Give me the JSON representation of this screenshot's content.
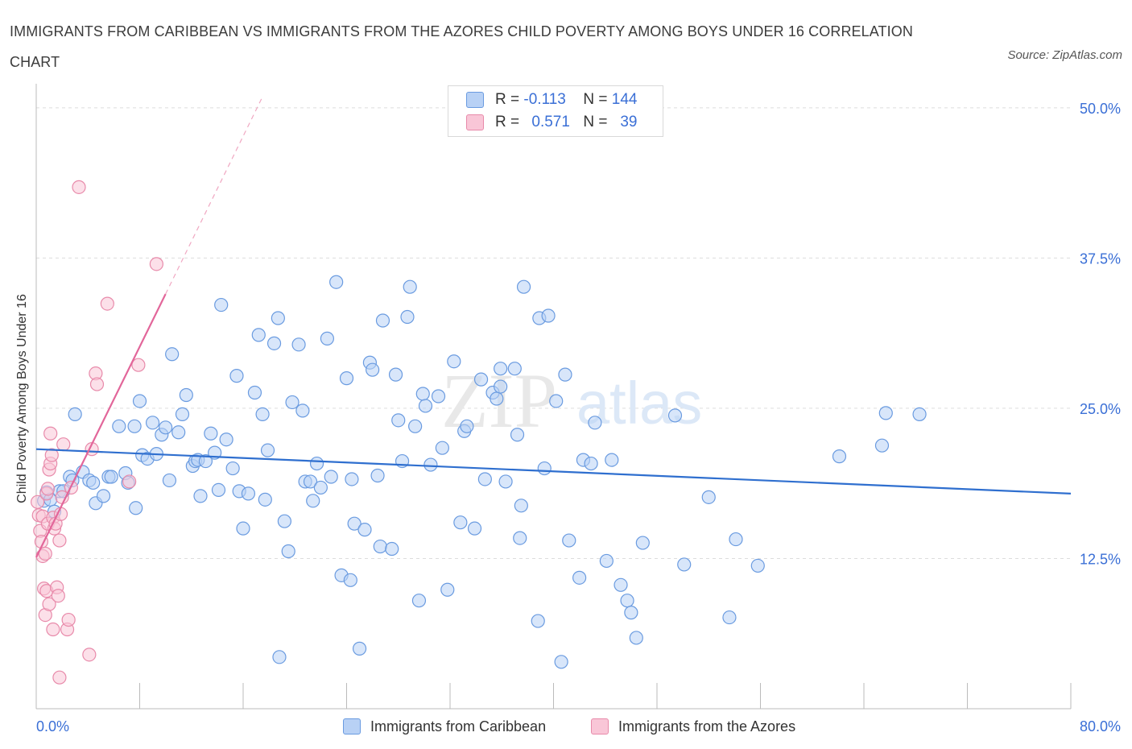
{
  "title": "IMMIGRANTS FROM CARIBBEAN VS IMMIGRANTS FROM THE AZORES CHILD POVERTY AMONG BOYS UNDER 16 CORRELATION CHART",
  "source": "Source: ZipAtlas.com",
  "watermark": {
    "zip": "ZIP",
    "atlas": "atlas"
  },
  "legend": {
    "r_label": "R =",
    "n_label": "N =",
    "entries": [
      {
        "r": "-0.113",
        "n": "144",
        "color": "#6a9be0"
      },
      {
        "r": "0.571",
        "n": "39",
        "color": "#e88aaa"
      }
    ]
  },
  "bottom_legend": [
    {
      "label": "Immigrants from Caribbean",
      "color": "#6a9be0"
    },
    {
      "label": "Immigrants from the Azores",
      "color": "#e88aaa"
    }
  ],
  "chart_data": {
    "type": "scatter",
    "title": "IMMIGRANTS FROM CARIBBEAN VS IMMIGRANTS FROM THE AZORES CHILD POVERTY AMONG BOYS UNDER 16 CORRELATION CHART",
    "xlabel": "",
    "ylabel": "Child Poverty Among Boys Under 16",
    "xlim": [
      0,
      80
    ],
    "ylim": [
      0,
      52
    ],
    "x_tick_labels": [
      "0.0%",
      "80.0%"
    ],
    "y_ticks": [
      12.5,
      25.0,
      37.5,
      50.0
    ],
    "y_tick_labels": [
      "12.5%",
      "25.0%",
      "37.5%",
      "50.0%"
    ],
    "grid": true,
    "legend_position": "top-center",
    "series": [
      {
        "name": "Immigrants from Caribbean",
        "color": "#6a9be0",
        "trend": {
          "x": [
            0,
            80
          ],
          "y": [
            21.6,
            17.9
          ]
        },
        "points": [
          [
            0.6,
            17.3
          ],
          [
            0.8,
            18.0
          ],
          [
            1.1,
            17.4
          ],
          [
            1.4,
            16.4
          ],
          [
            1.8,
            18.1
          ],
          [
            2.1,
            18.1
          ],
          [
            2.6,
            19.3
          ],
          [
            2.8,
            19.0
          ],
          [
            3.0,
            24.5
          ],
          [
            3.6,
            19.7
          ],
          [
            4.1,
            19.0
          ],
          [
            4.4,
            18.8
          ],
          [
            4.6,
            17.1
          ],
          [
            5.2,
            17.7
          ],
          [
            5.6,
            19.3
          ],
          [
            5.8,
            19.3
          ],
          [
            6.4,
            23.5
          ],
          [
            6.9,
            19.6
          ],
          [
            7.1,
            18.8
          ],
          [
            7.6,
            23.5
          ],
          [
            7.7,
            16.7
          ],
          [
            8.0,
            25.6
          ],
          [
            8.2,
            21.1
          ],
          [
            8.6,
            20.8
          ],
          [
            9.0,
            23.8
          ],
          [
            9.3,
            21.2
          ],
          [
            9.7,
            22.8
          ],
          [
            10.0,
            23.4
          ],
          [
            10.3,
            19.0
          ],
          [
            10.5,
            29.5
          ],
          [
            11.0,
            23.0
          ],
          [
            11.3,
            24.5
          ],
          [
            11.6,
            26.1
          ],
          [
            12.1,
            20.2
          ],
          [
            12.3,
            20.6
          ],
          [
            12.5,
            20.7
          ],
          [
            12.7,
            17.7
          ],
          [
            13.1,
            20.6
          ],
          [
            13.5,
            22.9
          ],
          [
            13.8,
            21.3
          ],
          [
            14.1,
            18.2
          ],
          [
            14.3,
            33.6
          ],
          [
            14.7,
            22.4
          ],
          [
            15.2,
            20.0
          ],
          [
            15.5,
            27.7
          ],
          [
            15.7,
            18.1
          ],
          [
            16.0,
            15.0
          ],
          [
            16.4,
            17.9
          ],
          [
            16.9,
            26.3
          ],
          [
            17.2,
            31.1
          ],
          [
            17.5,
            24.5
          ],
          [
            17.7,
            17.4
          ],
          [
            17.9,
            21.5
          ],
          [
            18.4,
            30.4
          ],
          [
            18.7,
            32.5
          ],
          [
            18.8,
            4.3
          ],
          [
            19.2,
            15.6
          ],
          [
            19.5,
            13.1
          ],
          [
            19.8,
            25.5
          ],
          [
            20.3,
            30.3
          ],
          [
            20.6,
            24.8
          ],
          [
            20.8,
            18.9
          ],
          [
            21.2,
            18.9
          ],
          [
            21.4,
            17.3
          ],
          [
            21.7,
            20.4
          ],
          [
            22.0,
            18.4
          ],
          [
            22.5,
            30.8
          ],
          [
            22.8,
            19.3
          ],
          [
            23.2,
            35.5
          ],
          [
            23.6,
            11.1
          ],
          [
            24.0,
            27.5
          ],
          [
            24.3,
            10.7
          ],
          [
            24.4,
            19.1
          ],
          [
            24.6,
            15.4
          ],
          [
            25.0,
            5.0
          ],
          [
            25.4,
            14.9
          ],
          [
            25.8,
            28.8
          ],
          [
            26.0,
            28.2
          ],
          [
            26.4,
            19.4
          ],
          [
            26.6,
            13.5
          ],
          [
            26.8,
            32.3
          ],
          [
            27.5,
            13.3
          ],
          [
            27.8,
            27.8
          ],
          [
            28.0,
            24.0
          ],
          [
            28.3,
            20.6
          ],
          [
            28.7,
            32.6
          ],
          [
            28.9,
            35.1
          ],
          [
            29.3,
            23.5
          ],
          [
            29.6,
            9.0
          ],
          [
            29.9,
            26.2
          ],
          [
            30.1,
            25.2
          ],
          [
            30.5,
            20.3
          ],
          [
            31.1,
            26.0
          ],
          [
            31.4,
            21.7
          ],
          [
            31.8,
            9.9
          ],
          [
            32.3,
            28.9
          ],
          [
            32.8,
            15.5
          ],
          [
            33.1,
            23.1
          ],
          [
            33.3,
            23.5
          ],
          [
            33.9,
            15.0
          ],
          [
            34.4,
            27.4
          ],
          [
            34.7,
            19.1
          ],
          [
            35.3,
            26.3
          ],
          [
            35.6,
            25.8
          ],
          [
            35.9,
            28.3
          ],
          [
            35.9,
            26.8
          ],
          [
            36.3,
            18.9
          ],
          [
            37.0,
            28.3
          ],
          [
            37.2,
            22.8
          ],
          [
            37.4,
            14.2
          ],
          [
            37.5,
            16.9
          ],
          [
            37.7,
            35.1
          ],
          [
            38.8,
            7.3
          ],
          [
            38.9,
            32.5
          ],
          [
            39.3,
            20.0
          ],
          [
            39.6,
            32.7
          ],
          [
            40.2,
            25.6
          ],
          [
            40.6,
            3.9
          ],
          [
            40.9,
            27.8
          ],
          [
            41.2,
            14.0
          ],
          [
            42.0,
            10.9
          ],
          [
            42.3,
            20.7
          ],
          [
            42.9,
            20.4
          ],
          [
            43.2,
            23.8
          ],
          [
            44.1,
            12.3
          ],
          [
            44.5,
            20.7
          ],
          [
            45.2,
            10.3
          ],
          [
            45.7,
            9.0
          ],
          [
            46.0,
            8.0
          ],
          [
            46.4,
            5.9
          ],
          [
            46.9,
            13.8
          ],
          [
            49.4,
            24.4
          ],
          [
            50.1,
            12.0
          ],
          [
            52.0,
            17.6
          ],
          [
            53.6,
            7.6
          ],
          [
            54.1,
            14.1
          ],
          [
            55.8,
            11.9
          ],
          [
            62.1,
            21.0
          ],
          [
            65.4,
            21.9
          ],
          [
            65.7,
            24.6
          ],
          [
            68.3,
            24.5
          ]
        ]
      },
      {
        "name": "Immigrants from the Azores",
        "color": "#e88aaa",
        "trend": {
          "x": [
            0,
            10
          ],
          "y": [
            12.6,
            34.5
          ]
        },
        "points": [
          [
            0.1,
            17.2
          ],
          [
            0.2,
            16.1
          ],
          [
            0.3,
            14.8
          ],
          [
            0.4,
            13.9
          ],
          [
            0.5,
            16.0
          ],
          [
            0.5,
            12.7
          ],
          [
            0.6,
            10.0
          ],
          [
            0.7,
            12.9
          ],
          [
            0.7,
            7.8
          ],
          [
            0.8,
            17.9
          ],
          [
            0.8,
            9.8
          ],
          [
            0.9,
            18.3
          ],
          [
            0.9,
            15.4
          ],
          [
            1.0,
            19.9
          ],
          [
            1.0,
            8.7
          ],
          [
            1.1,
            22.9
          ],
          [
            1.1,
            20.4
          ],
          [
            1.2,
            21.1
          ],
          [
            1.3,
            15.9
          ],
          [
            1.3,
            6.6
          ],
          [
            1.4,
            15.0
          ],
          [
            1.5,
            15.4
          ],
          [
            1.6,
            10.1
          ],
          [
            1.7,
            9.4
          ],
          [
            1.8,
            2.6
          ],
          [
            1.8,
            14.0
          ],
          [
            1.9,
            16.2
          ],
          [
            2.0,
            17.6
          ],
          [
            2.1,
            22.0
          ],
          [
            2.4,
            6.6
          ],
          [
            2.5,
            7.4
          ],
          [
            2.7,
            18.4
          ],
          [
            3.3,
            43.4
          ],
          [
            4.1,
            4.5
          ],
          [
            4.3,
            21.6
          ],
          [
            4.6,
            27.9
          ],
          [
            4.7,
            27.0
          ],
          [
            5.5,
            33.7
          ],
          [
            7.2,
            18.9
          ],
          [
            7.9,
            28.6
          ],
          [
            9.3,
            37.0
          ]
        ]
      }
    ]
  }
}
